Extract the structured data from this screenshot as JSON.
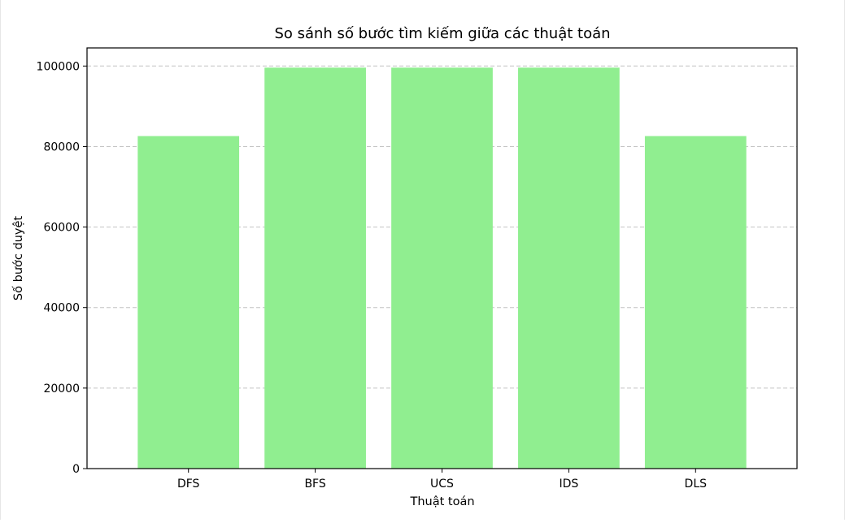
{
  "chart_data": {
    "type": "bar",
    "title": "So sánh số bước tìm kiếm giữa các thuật toán",
    "xlabel": "Thuật toán",
    "ylabel": "Số bước duyệt",
    "categories": [
      "DFS",
      "BFS",
      "UCS",
      "IDS",
      "DLS"
    ],
    "values": [
      82600,
      99600,
      99600,
      99600,
      82600
    ],
    "ylim": [
      0,
      104500
    ],
    "yticks": [
      0,
      20000,
      40000,
      60000,
      80000,
      100000
    ],
    "grid": "y-dashed",
    "bar_color": "#90ee90"
  }
}
